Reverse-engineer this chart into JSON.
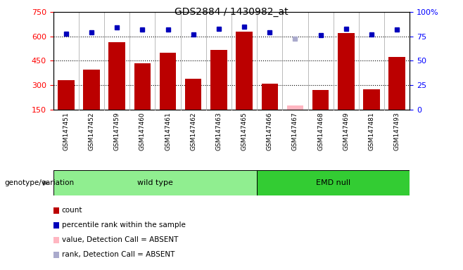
{
  "title": "GDS2884 / 1430982_at",
  "samples": [
    "GSM147451",
    "GSM147452",
    "GSM147459",
    "GSM147460",
    "GSM147461",
    "GSM147462",
    "GSM147463",
    "GSM147465",
    "GSM147466",
    "GSM147467",
    "GSM147468",
    "GSM147469",
    "GSM147481",
    "GSM147493"
  ],
  "counts": [
    330,
    395,
    565,
    435,
    500,
    340,
    515,
    630,
    310,
    175,
    270,
    620,
    275,
    475
  ],
  "percentile_ranks": [
    78,
    79,
    84,
    82,
    82,
    77,
    83,
    85,
    79,
    73,
    76,
    83,
    77,
    82
  ],
  "absent_value_idx": [
    9
  ],
  "absent_rank_idx": [
    9
  ],
  "absent_value": 175,
  "absent_rank": 73,
  "wt_count": 8,
  "emd_count": 6,
  "group_label": "genotype/variation",
  "wt_label": "wild type",
  "emd_label": "EMD null",
  "wt_color": "#90EE90",
  "emd_color": "#33CC33",
  "ylim_left": [
    150,
    750
  ],
  "ylim_right": [
    0,
    100
  ],
  "yticks_left": [
    150,
    300,
    450,
    600,
    750
  ],
  "yticks_right": [
    0,
    25,
    50,
    75,
    100
  ],
  "bar_color": "#BB0000",
  "blue_marker_color": "#0000BB",
  "absent_value_color": "#FFB6C1",
  "absent_rank_color": "#AAAACC",
  "dotted_lines": [
    300,
    450,
    600
  ],
  "bg_color": "#FFFFFF",
  "tick_label_bg": "#C8C8C8",
  "legend": [
    {
      "color": "#BB0000",
      "shape": "rect",
      "label": "count"
    },
    {
      "color": "#0000BB",
      "shape": "rect",
      "label": "percentile rank within the sample"
    },
    {
      "color": "#FFB6C1",
      "shape": "rect",
      "label": "value, Detection Call = ABSENT"
    },
    {
      "color": "#AAAACC",
      "shape": "rect",
      "label": "rank, Detection Call = ABSENT"
    }
  ]
}
